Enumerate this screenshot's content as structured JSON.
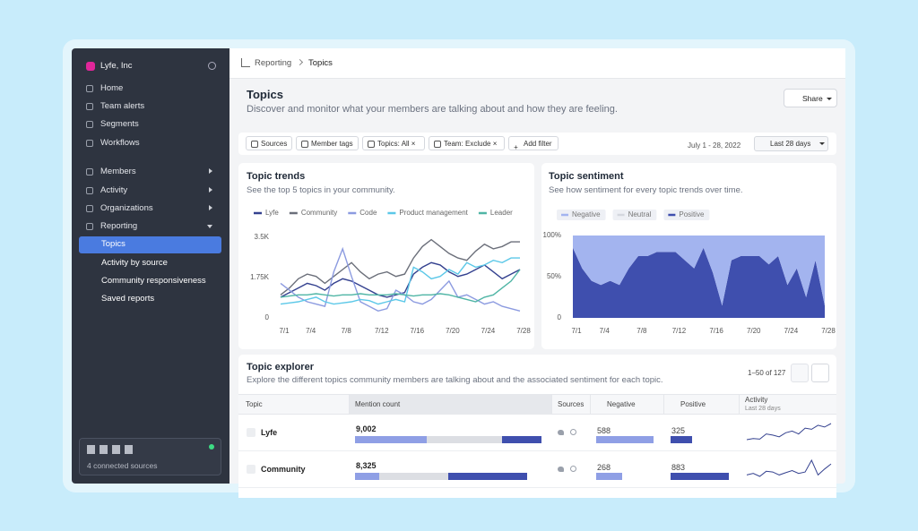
{
  "sidebar": {
    "org": "Lyfe, Inc",
    "nav": [
      "Home",
      "Team alerts",
      "Segments",
      "Workflows"
    ],
    "sections": [
      "Members",
      "Activity",
      "Organizations",
      "Reporting"
    ],
    "reporting": [
      "Topics",
      "Activity by source",
      "Community responsiveness",
      "Saved reports"
    ],
    "sources": "4 connected sources"
  },
  "breadcrumb": [
    "Reporting",
    "Topics"
  ],
  "header": {
    "title": "Topics",
    "subtitle": "Discover and monitor what your members are talking about and how they are feeling.",
    "share": "Share"
  },
  "filters": {
    "chips": [
      "Sources",
      "Member tags"
    ],
    "topics": {
      "label": "Topics:",
      "value": "All"
    },
    "team": {
      "label": "Team:",
      "value": "Exclude"
    },
    "add": "Add filter",
    "date": "July 1 - 28, 2022",
    "range": "Last 28 days"
  },
  "chart_data": [
    {
      "type": "line",
      "title": "Topic trends",
      "subtitle": "See the top 5 topics in your community.",
      "categories": [
        "7/1",
        null,
        null,
        "7/4",
        null,
        null,
        null,
        "7/8",
        null,
        null,
        null,
        "7/12",
        null,
        null,
        null,
        "7/16",
        null,
        null,
        null,
        "7/20",
        null,
        null,
        null,
        "7/24",
        null,
        null,
        null,
        "7/28"
      ],
      "series": [
        {
          "name": "Lyfe",
          "color": "#34418f",
          "values": [
            900,
            1100,
            1300,
            1500,
            1400,
            1200,
            1500,
            1700,
            1600,
            1400,
            1200,
            1000,
            900,
            1000,
            1100,
            1900,
            2200,
            2400,
            2300,
            2000,
            1800,
            1900,
            2100,
            2300,
            2000,
            1700,
            1900,
            2100
          ]
        },
        {
          "name": "Community",
          "color": "#6b6f7a",
          "values": [
            1000,
            1300,
            1700,
            1900,
            1800,
            1500,
            1800,
            2100,
            2400,
            2000,
            1700,
            1900,
            2000,
            1800,
            1900,
            2600,
            3100,
            3400,
            3100,
            2800,
            2600,
            2500,
            2900,
            3200,
            3000,
            3100,
            3300,
            3300
          ]
        },
        {
          "name": "Code",
          "color": "#8c9be0",
          "values": [
            1500,
            1200,
            900,
            700,
            600,
            500,
            2000,
            3000,
            1800,
            700,
            500,
            300,
            400,
            1200,
            1000,
            700,
            600,
            800,
            1200,
            1600,
            900,
            1000,
            800,
            600,
            700,
            500,
            400,
            300
          ]
        },
        {
          "name": "Product management",
          "color": "#5cc8e8",
          "values": [
            600,
            650,
            700,
            800,
            900,
            700,
            600,
            650,
            700,
            800,
            750,
            600,
            700,
            800,
            700,
            2200,
            2000,
            1700,
            1800,
            2100,
            1900,
            2400,
            2200,
            2300,
            2500,
            2400,
            2600,
            2600
          ]
        },
        {
          "name": "Leader",
          "color": "#4fb5a5",
          "values": [
            900,
            950,
            1000,
            1000,
            1050,
            1000,
            950,
            1000,
            1000,
            1050,
            1000,
            1000,
            1000,
            1050,
            1000,
            950,
            1000,
            1000,
            1050,
            1000,
            900,
            800,
            700,
            900,
            1000,
            1300,
            1600,
            2100
          ]
        }
      ],
      "ylim": [
        0,
        3500
      ],
      "yticks": [
        0,
        {
          "value": 1750,
          "label": "1.75K"
        },
        {
          "value": 3500,
          "label": "3.5K"
        }
      ],
      "grid": false
    },
    {
      "type": "area",
      "stacked": true,
      "title": "Topic sentiment",
      "subtitle": "See how sentiment for every topic trends over time.",
      "categories": [
        "7/1",
        null,
        null,
        "7/4",
        null,
        null,
        null,
        "7/8",
        null,
        null,
        null,
        "7/12",
        null,
        null,
        null,
        "7/16",
        null,
        null,
        null,
        "7/20",
        null,
        null,
        null,
        "7/24",
        null,
        null,
        null,
        "7/28"
      ],
      "series": [
        {
          "name": "Negative",
          "color": "#a3b4ef",
          "values": [
            15,
            40,
            55,
            60,
            55,
            60,
            40,
            25,
            25,
            20,
            20,
            20,
            30,
            40,
            15,
            45,
            85,
            30,
            25,
            25,
            25,
            35,
            25,
            60,
            40,
            75,
            30,
            85
          ]
        },
        {
          "name": "Neutral",
          "color": "#d4d7de",
          "values": [
            0,
            0,
            0,
            0,
            0,
            0,
            0,
            0,
            0,
            0,
            0,
            0,
            0,
            0,
            0,
            0,
            0,
            0,
            0,
            0,
            0,
            0,
            0,
            0,
            0,
            0,
            0,
            0
          ]
        },
        {
          "name": "Positive",
          "color": "#3f4fae",
          "values": [
            85,
            60,
            45,
            40,
            45,
            40,
            60,
            75,
            75,
            80,
            80,
            80,
            70,
            60,
            85,
            55,
            15,
            70,
            75,
            75,
            75,
            65,
            75,
            40,
            60,
            25,
            70,
            15
          ]
        }
      ],
      "ylim": [
        0,
        100
      ],
      "yticks": [
        0,
        {
          "value": 50,
          "label": "50%"
        },
        {
          "value": 100,
          "label": "100%"
        }
      ],
      "grid": false
    }
  ],
  "explorer": {
    "title": "Topic explorer",
    "subtitle": "Explore the different topics community members are talking about and the associated sentiment for each topic.",
    "pagination": "1–50 of 127",
    "columns": [
      "Topic",
      "Mention count",
      "Sources",
      "Negative",
      "Positive",
      "Activity"
    ],
    "activity_sub": "Last 28 days",
    "rows": [
      {
        "topic": "Lyfe",
        "mentions": 9002,
        "mentions_label": "9,002",
        "negative": 588,
        "positive": 325,
        "activity": [
          30,
          32,
          31,
          40,
          38,
          35,
          42,
          45,
          40,
          50,
          48,
          55,
          52,
          58
        ]
      },
      {
        "topic": "Community",
        "mentions": 8325,
        "mentions_label": "8,325",
        "negative": 268,
        "positive": 883,
        "activity": [
          40,
          42,
          38,
          45,
          44,
          40,
          43,
          46,
          42,
          44,
          60,
          40,
          48,
          55
        ]
      }
    ]
  }
}
